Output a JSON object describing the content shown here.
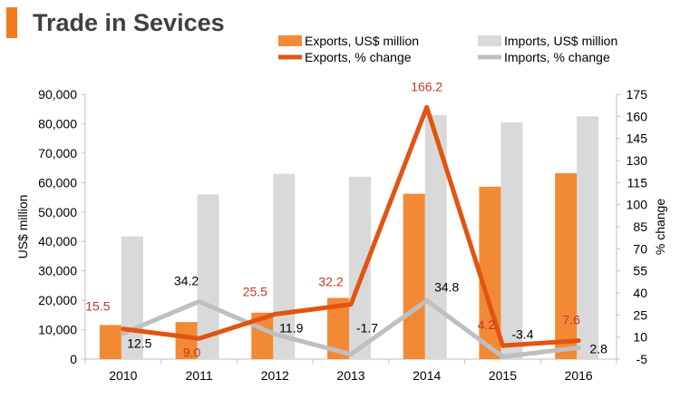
{
  "header": {
    "title": "Trade in Sevices",
    "accent_color": "#f07c1f"
  },
  "chart_data": {
    "type": "bar",
    "title": "Trade in Sevices",
    "categories": [
      "2010",
      "2011",
      "2012",
      "2013",
      "2014",
      "2015",
      "2016"
    ],
    "ylabel": "US$ million",
    "y2label": "% change",
    "ylim": [
      0,
      90000
    ],
    "y2lim": [
      -5,
      175
    ],
    "yticks": [
      "0",
      "10,000",
      "20,000",
      "30,000",
      "40,000",
      "50,000",
      "60,000",
      "70,000",
      "80,000",
      "90,000"
    ],
    "y2ticks": [
      "-5",
      "10",
      "25",
      "40",
      "55",
      "70",
      "85",
      "100",
      "115",
      "130",
      "145",
      "160",
      "175"
    ],
    "legend_position": "top-right",
    "series": [
      {
        "name": "Exports, US$ million",
        "kind": "bar",
        "axis": "left",
        "color": "#f28a35",
        "values": [
          11600,
          12600,
          15800,
          20800,
          56200,
          58600,
          63200
        ]
      },
      {
        "name": "Imports, US$ million",
        "kind": "bar",
        "axis": "left",
        "color": "#d9d9d9",
        "values": [
          41700,
          56000,
          63000,
          62000,
          83000,
          80500,
          82500
        ]
      },
      {
        "name": "Exports, % change",
        "kind": "line",
        "axis": "right",
        "color": "#e25412",
        "values": [
          15.5,
          9.0,
          25.5,
          32.2,
          166.2,
          4.2,
          7.6
        ],
        "labels": [
          "15.5",
          "9.0",
          "25.5",
          "32.2",
          "166.2",
          "4.2",
          "7.6"
        ],
        "label_color": "#c0392b"
      },
      {
        "name": "Imports, % change",
        "kind": "line",
        "axis": "right",
        "color": "#bfbfbf",
        "values": [
          12.5,
          34.2,
          11.9,
          -1.7,
          34.8,
          -3.4,
          2.8
        ],
        "labels": [
          "12.5",
          "34.2",
          "11.9",
          "-1.7",
          "34.8",
          "-3.4",
          "2.8"
        ],
        "label_color": "#000000"
      }
    ]
  }
}
